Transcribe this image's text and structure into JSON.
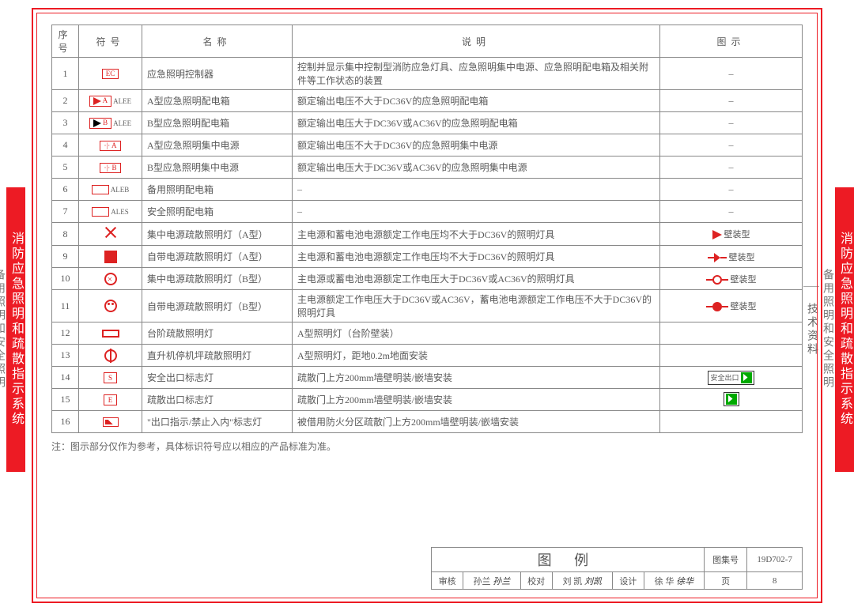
{
  "side": {
    "red_title": "消防应急照明和疏散指示系统",
    "gray_left": "备用照明和安全照明",
    "gray_right": "备用照明和安全照明",
    "tech": "技术资料"
  },
  "headers": {
    "num": "序号",
    "sym": "符号",
    "name": "名称",
    "desc": "说明",
    "fig": "图示"
  },
  "rows": [
    {
      "n": "1",
      "sym_label": "EC",
      "sym_suffix": "",
      "name": "应急照明控制器",
      "desc": "控制并显示集中控制型消防应急灯具、应急照明集中电源、应急照明配电箱及相关附件等工作状态的装置",
      "fig": "–"
    },
    {
      "n": "2",
      "sym_label": "A",
      "sym_suffix": "ALEE",
      "name": "A型应急照明配电箱",
      "desc": "额定输出电压不大于DC36V的应急照明配电箱",
      "fig": "–"
    },
    {
      "n": "3",
      "sym_label": "B",
      "sym_suffix": "ALEE",
      "name": "B型应急照明配电箱",
      "desc": "额定输出电压大于DC36V或AC36V的应急照明配电箱",
      "fig": "–"
    },
    {
      "n": "4",
      "sym_label": "□□ A",
      "sym_suffix": "",
      "name": "A型应急照明集中电源",
      "desc": "额定输出电压不大于DC36V的应急照明集中电源",
      "fig": "–"
    },
    {
      "n": "5",
      "sym_label": "□□ B",
      "sym_suffix": "",
      "name": "B型应急照明集中电源",
      "desc": "额定输出电压大于DC36V或AC36V的应急照明集中电源",
      "fig": "–"
    },
    {
      "n": "6",
      "sym_label": "",
      "sym_suffix": "ALEB",
      "name": "备用照明配电箱",
      "desc": "–",
      "fig": "–"
    },
    {
      "n": "7",
      "sym_label": "",
      "sym_suffix": "ALES",
      "name": "安全照明配电箱",
      "desc": "–",
      "fig": "–"
    },
    {
      "n": "8",
      "sym_label": "x",
      "sym_suffix": "",
      "name": "集中电源疏散照明灯（A型）",
      "desc": "主电源和蓄电池电源额定工作电压均不大于DC36V的照明灯具",
      "fig": "壁装型",
      "fig_icon": "flag"
    },
    {
      "n": "9",
      "sym_label": "sq",
      "sym_suffix": "",
      "name": "自带电源疏散照明灯（A型）",
      "desc": "主电源和蓄电池电源额定工作电压均不大于DC36V的照明灯具",
      "fig": "壁装型",
      "fig_icon": "hflag"
    },
    {
      "n": "10",
      "sym_label": "cx",
      "sym_suffix": "",
      "name": "集中电源疏散照明灯（B型）",
      "desc": "主电源或蓄电池电源额定工作电压大于DC36V或AC36V的照明灯具",
      "fig": "壁装型",
      "fig_icon": "hcirc"
    },
    {
      "n": "11",
      "sym_label": "cc",
      "sym_suffix": "",
      "name": "自带电源疏散照明灯（B型）",
      "desc": "主电源额定工作电压大于DC36V或AC36V，蓄电池电源额定工作电压不大于DC36V的照明灯具",
      "fig": "壁装型",
      "fig_icon": "hcircf"
    },
    {
      "n": "12",
      "sym_label": "st",
      "sym_suffix": "",
      "name": "台阶疏散照明灯",
      "desc": "A型照明灯（台阶壁装）",
      "fig": ""
    },
    {
      "n": "13",
      "sym_label": "he",
      "sym_suffix": "",
      "name": "直升机停机坪疏散照明灯",
      "desc": "A型照明灯，距地0.2m地面安装",
      "fig": ""
    },
    {
      "n": "14",
      "sym_label": "S",
      "sym_suffix": "",
      "name": "安全出口标志灯",
      "desc": "疏散门上方200mm墙壁明装/嵌墙安装",
      "fig": "",
      "fig_icon": "exit1"
    },
    {
      "n": "15",
      "sym_label": "E",
      "sym_suffix": "",
      "name": "疏散出口标志灯",
      "desc": "疏散门上方200mm墙壁明装/嵌墙安装",
      "fig": "",
      "fig_icon": "exit2"
    },
    {
      "n": "16",
      "sym_label": "fl",
      "sym_suffix": "",
      "name": "\"出口指示/禁止入内\"标志灯",
      "desc": "被借用防火分区疏散门上方200mm墙壁明装/嵌墙安装",
      "fig": ""
    }
  ],
  "note": "注：图示部分仅作为参考，具体标识符号应以相应的产品标准为准。",
  "titleblock": {
    "legend": "图 例",
    "setlabel": "图集号",
    "setno": "19D702-7",
    "review_l": "审核",
    "review_v": "孙兰",
    "check_l": "校对",
    "check_v": "刘 凯",
    "design_l": "设计",
    "design_v": "徐 华",
    "page_l": "页",
    "page_v": "8",
    "exit_text": "安全出口"
  }
}
